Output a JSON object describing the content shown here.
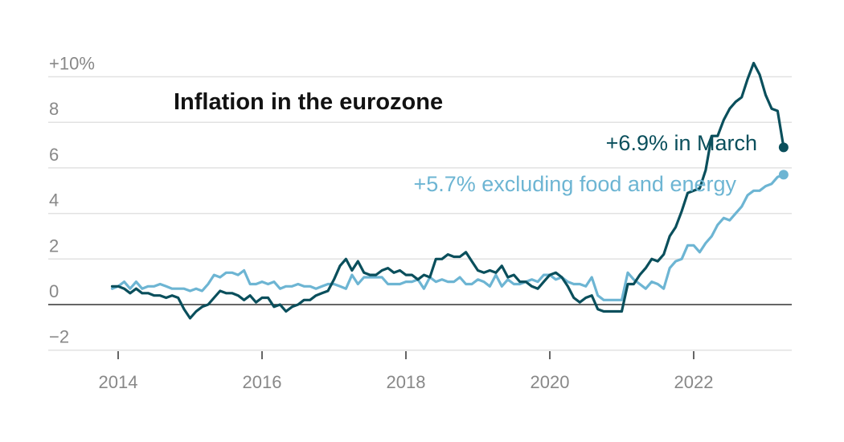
{
  "chart_data": {
    "type": "line",
    "title": "Inflation in the eurozone",
    "xlabel": "",
    "ylabel": "",
    "ylim": [
      -2,
      10
    ],
    "xlim": [
      "2013-05",
      "2023-06"
    ],
    "grid": true,
    "y_ticks": [
      {
        "value": 10,
        "label": "+10%"
      },
      {
        "value": 8,
        "label": "8"
      },
      {
        "value": 6,
        "label": "6"
      },
      {
        "value": 4,
        "label": "4"
      },
      {
        "value": 2,
        "label": "2"
      },
      {
        "value": 0,
        "label": "0"
      },
      {
        "value": -2,
        "label": "−2"
      }
    ],
    "x_ticks": [
      {
        "value": 2014,
        "label": "2014"
      },
      {
        "value": 2016,
        "label": "2016"
      },
      {
        "value": 2018,
        "label": "2018"
      },
      {
        "value": 2020,
        "label": "2020"
      },
      {
        "value": 2022,
        "label": "2022"
      }
    ],
    "start": "2013-12",
    "frequency": "monthly",
    "series": [
      {
        "name": "Headline inflation",
        "color": "#0a4f5c",
        "values": [
          0.8,
          0.8,
          0.7,
          0.5,
          0.7,
          0.5,
          0.5,
          0.4,
          0.4,
          0.3,
          0.4,
          0.3,
          -0.2,
          -0.6,
          -0.3,
          -0.1,
          0.0,
          0.3,
          0.6,
          0.5,
          0.5,
          0.4,
          0.2,
          0.4,
          0.1,
          0.3,
          0.3,
          -0.1,
          0.0,
          -0.3,
          -0.1,
          0.0,
          0.2,
          0.2,
          0.4,
          0.5,
          0.6,
          1.1,
          1.7,
          2.0,
          1.5,
          1.9,
          1.4,
          1.3,
          1.3,
          1.5,
          1.6,
          1.4,
          1.5,
          1.3,
          1.3,
          1.1,
          1.3,
          1.2,
          2.0,
          2.0,
          2.2,
          2.1,
          2.1,
          2.3,
          1.9,
          1.5,
          1.4,
          1.5,
          1.4,
          1.7,
          1.2,
          1.3,
          1.0,
          1.0,
          0.8,
          0.7,
          1.0,
          1.3,
          1.4,
          1.2,
          0.8,
          0.3,
          0.1,
          0.3,
          0.4,
          -0.2,
          -0.3,
          -0.3,
          -0.3,
          -0.3,
          0.9,
          0.9,
          1.3,
          1.6,
          2.0,
          1.9,
          2.2,
          3.0,
          3.4,
          4.1,
          4.9,
          5.0,
          5.1,
          5.9,
          7.4,
          7.4,
          8.1,
          8.6,
          8.9,
          9.1,
          9.9,
          10.6,
          10.1,
          9.2,
          8.6,
          8.5,
          6.9
        ]
      },
      {
        "name": "Excluding food and energy",
        "color": "#6db5d3",
        "values": [
          0.7,
          0.8,
          1.0,
          0.7,
          1.0,
          0.7,
          0.8,
          0.8,
          0.9,
          0.8,
          0.7,
          0.7,
          0.7,
          0.6,
          0.7,
          0.6,
          0.9,
          1.3,
          1.2,
          1.4,
          1.4,
          1.3,
          1.5,
          0.9,
          0.9,
          1.0,
          0.9,
          1.0,
          0.7,
          0.8,
          0.8,
          0.9,
          0.8,
          0.8,
          0.7,
          0.8,
          0.9,
          0.9,
          0.8,
          0.7,
          1.3,
          0.9,
          1.2,
          1.2,
          1.2,
          1.2,
          0.9,
          0.9,
          0.9,
          1.0,
          1.0,
          1.1,
          0.7,
          1.2,
          1.0,
          1.1,
          1.0,
          1.0,
          1.2,
          0.9,
          0.9,
          1.1,
          1.0,
          0.8,
          1.3,
          0.8,
          1.1,
          0.9,
          0.9,
          1.0,
          1.1,
          1.0,
          1.3,
          1.3,
          1.1,
          1.2,
          1.0,
          0.9,
          0.9,
          0.8,
          1.2,
          0.4,
          0.2,
          0.2,
          0.2,
          0.2,
          1.4,
          1.1,
          0.9,
          0.7,
          1.0,
          0.9,
          0.7,
          1.6,
          1.9,
          2.0,
          2.6,
          2.6,
          2.3,
          2.7,
          3.0,
          3.5,
          3.8,
          3.7,
          4.0,
          4.3,
          4.8,
          5.0,
          5.0,
          5.2,
          5.3,
          5.6,
          5.7
        ]
      }
    ],
    "annotations": [
      {
        "text": "+6.9% in March",
        "series": "Headline inflation",
        "value": 6.9,
        "date": "2023-03",
        "color": "#0a4f5c"
      },
      {
        "text": "+5.7% excluding food and energy",
        "series": "Excluding food and energy",
        "value": 5.7,
        "date": "2023-03",
        "color": "#6db5d3"
      }
    ]
  },
  "colors": {
    "gridline": "#e2e2e2",
    "zero_line": "#333333",
    "tick_text": "#888888",
    "title_text": "#121212"
  }
}
